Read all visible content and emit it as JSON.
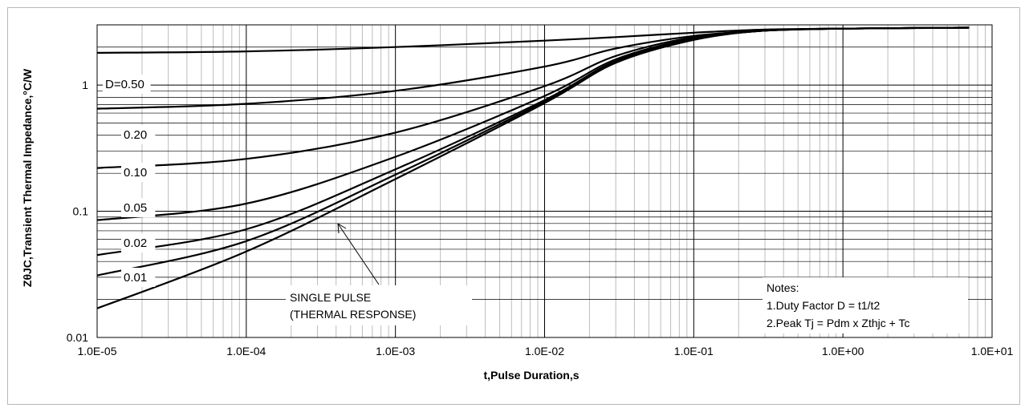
{
  "chart_data": {
    "type": "line",
    "xlabel": "t,Pulse Duration,s",
    "ylabel": "ZθJC,Transient Thermal Impedance,°C/W",
    "xscale": "log",
    "yscale": "log",
    "xlim": [
      1e-05,
      10
    ],
    "ylim": [
      0.01,
      3
    ],
    "grid": true,
    "x_tick_labels": [
      "1.0E-05",
      "1.0E-04",
      "1.0E-03",
      "1.0E-02",
      "1.0E-01",
      "1.0E+00",
      "1.0E+01"
    ],
    "y_tick_labels": [
      "1",
      "0.1",
      "0.01"
    ],
    "series": [
      {
        "name": "D=0.50",
        "x": [
          1e-05,
          0.0001,
          0.001,
          0.01,
          0.03,
          0.1,
          0.3,
          1,
          7
        ],
        "y": [
          1.8,
          1.85,
          2.0,
          2.25,
          2.4,
          2.6,
          2.75,
          2.8,
          2.85
        ]
      },
      {
        "name": "0.20",
        "x": [
          1e-05,
          0.0001,
          0.001,
          0.01,
          0.03,
          0.1,
          0.3,
          1,
          7
        ],
        "y": [
          0.65,
          0.71,
          0.9,
          1.4,
          1.95,
          2.45,
          2.7,
          2.8,
          2.85
        ]
      },
      {
        "name": "0.10",
        "x": [
          1e-05,
          0.0001,
          0.001,
          0.01,
          0.03,
          0.1,
          0.3,
          1,
          7
        ],
        "y": [
          0.22,
          0.26,
          0.42,
          0.98,
          1.7,
          2.4,
          2.7,
          2.8,
          2.85
        ]
      },
      {
        "name": "0.05",
        "x": [
          1e-05,
          0.0001,
          0.001,
          0.01,
          0.03,
          0.1,
          0.3,
          1,
          7
        ],
        "y": [
          0.085,
          0.115,
          0.27,
          0.82,
          1.6,
          2.35,
          2.7,
          2.8,
          2.85
        ]
      },
      {
        "name": "0.02",
        "x": [
          1e-05,
          0.0001,
          0.001,
          0.01,
          0.03,
          0.1,
          0.3,
          1,
          7
        ],
        "y": [
          0.045,
          0.072,
          0.215,
          0.76,
          1.55,
          2.3,
          2.7,
          2.8,
          2.85
        ]
      },
      {
        "name": "0.01",
        "x": [
          1e-05,
          0.0001,
          0.001,
          0.01,
          0.03,
          0.1,
          0.3,
          1,
          7
        ],
        "y": [
          0.031,
          0.058,
          0.195,
          0.74,
          1.52,
          2.3,
          2.7,
          2.8,
          2.85
        ]
      },
      {
        "name": "SINGLE PULSE",
        "x": [
          1e-05,
          0.0001,
          0.001,
          0.01,
          0.03,
          0.1,
          0.3,
          1,
          7
        ],
        "y": [
          0.017,
          0.048,
          0.18,
          0.72,
          1.5,
          2.28,
          2.7,
          2.8,
          2.85
        ]
      }
    ],
    "annotations": {
      "single_pulse_line1": "SINGLE PULSE",
      "single_pulse_line2": "(THERMAL RESPONSE)",
      "notes_title": "Notes:",
      "note1": "1.Duty Factor D = t1/t2",
      "note2": "2.Peak Tj = Pdm x Zthjc + Tc"
    }
  }
}
